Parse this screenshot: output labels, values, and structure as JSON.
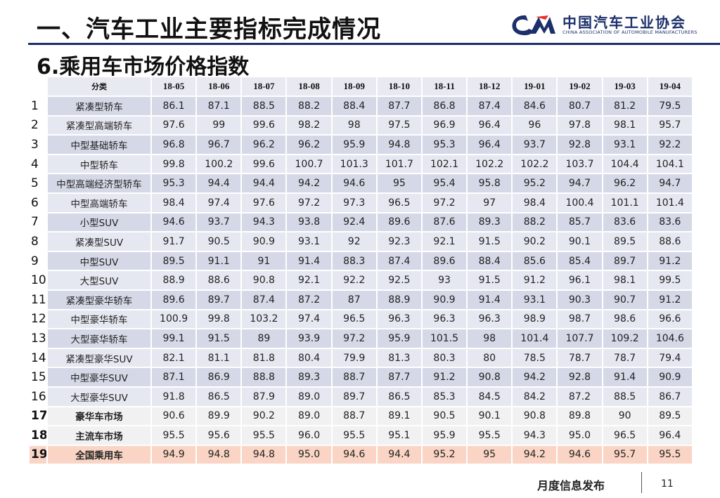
{
  "header": {
    "title": "一、汽车工业主要指标完成情况",
    "subtitle": "6.乘用车市场价格指数",
    "logo_cn": "中国汽车工业协会",
    "logo_en": "CHINA ASSOCIATION OF AUTOMOBILE MANUFACTURERS"
  },
  "table": {
    "category_header": "分类",
    "months": [
      "18-05",
      "18-06",
      "18-07",
      "18-08",
      "18-09",
      "18-10",
      "18-11",
      "18-12",
      "19-01",
      "19-02",
      "19-03",
      "19-04"
    ],
    "rows": [
      {
        "idx": "1",
        "category": "紧凑型轿车",
        "values": [
          "86.1",
          "87.1",
          "88.5",
          "88.2",
          "88.4",
          "87.7",
          "86.8",
          "87.4",
          "84.6",
          "80.7",
          "81.2",
          "79.5"
        ]
      },
      {
        "idx": "2",
        "category": "紧凑型高端轿车",
        "values": [
          "97.6",
          "99",
          "99.6",
          "98.2",
          "98",
          "97.5",
          "96.9",
          "96.4",
          "96",
          "97.8",
          "98.1",
          "95.7"
        ]
      },
      {
        "idx": "3",
        "category": "中型基础轿车",
        "values": [
          "96.8",
          "96.7",
          "96.2",
          "96.2",
          "95.9",
          "94.8",
          "95.3",
          "96.4",
          "93.7",
          "92.8",
          "93.1",
          "92.2"
        ]
      },
      {
        "idx": "4",
        "category": "中型轿车",
        "values": [
          "99.8",
          "100.2",
          "99.6",
          "100.7",
          "101.3",
          "101.7",
          "102.1",
          "102.2",
          "102.2",
          "103.7",
          "104.4",
          "104.1"
        ]
      },
      {
        "idx": "5",
        "category": "中型高端经济型轿车",
        "values": [
          "95.3",
          "94.4",
          "94.4",
          "94.2",
          "94.6",
          "95",
          "95.4",
          "95.8",
          "95.2",
          "94.7",
          "96.2",
          "94.7"
        ]
      },
      {
        "idx": "6",
        "category": "中型高端轿车",
        "values": [
          "98.4",
          "97.4",
          "97.6",
          "97.2",
          "97.3",
          "96.5",
          "97.2",
          "97",
          "98.4",
          "100.4",
          "101.1",
          "101.4"
        ]
      },
      {
        "idx": "7",
        "category": "小型SUV",
        "values": [
          "94.6",
          "93.7",
          "94.3",
          "93.8",
          "92.4",
          "89.6",
          "87.6",
          "89.3",
          "88.2",
          "85.7",
          "83.6",
          "83.6"
        ]
      },
      {
        "idx": "8",
        "category": "紧凑型SUV",
        "values": [
          "91.7",
          "90.5",
          "90.9",
          "93.1",
          "92",
          "92.3",
          "92.1",
          "91.5",
          "90.2",
          "90.1",
          "89.5",
          "88.6"
        ]
      },
      {
        "idx": "9",
        "category": "中型SUV",
        "values": [
          "89.5",
          "91.1",
          "91",
          "91.4",
          "88.3",
          "87.4",
          "89.6",
          "88.4",
          "85.6",
          "85.4",
          "89.7",
          "91.2"
        ]
      },
      {
        "idx": "10",
        "category": "大型SUV",
        "values": [
          "88.9",
          "88.6",
          "90.8",
          "92.1",
          "92.2",
          "92.5",
          "93",
          "91.5",
          "91.2",
          "96.1",
          "98.1",
          "99.5"
        ]
      },
      {
        "idx": "11",
        "category": "紧凑型豪华轿车",
        "values": [
          "89.6",
          "89.7",
          "87.4",
          "87.2",
          "87",
          "88.9",
          "90.9",
          "91.4",
          "93.1",
          "90.3",
          "90.7",
          "91.2"
        ]
      },
      {
        "idx": "12",
        "category": "中型豪华轿车",
        "values": [
          "100.9",
          "99.8",
          "103.2",
          "97.4",
          "96.5",
          "96.3",
          "96.3",
          "96.3",
          "98.9",
          "98.7",
          "98.6",
          "96.6"
        ]
      },
      {
        "idx": "13",
        "category": "大型豪华轿车",
        "values": [
          "99.1",
          "91.5",
          "89",
          "93.9",
          "97.2",
          "95.9",
          "101.5",
          "98",
          "101.4",
          "107.7",
          "109.2",
          "104.6"
        ]
      },
      {
        "idx": "14",
        "category": "紧凑型豪华SUV",
        "values": [
          "82.1",
          "81.1",
          "81.8",
          "80.4",
          "79.9",
          "81.3",
          "80.3",
          "80",
          "78.5",
          "78.7",
          "78.7",
          "79.4"
        ]
      },
      {
        "idx": "15",
        "category": "中型豪华SUV",
        "values": [
          "87.1",
          "86.9",
          "88.8",
          "89.3",
          "88.7",
          "87.7",
          "91.2",
          "90.8",
          "94.2",
          "92.8",
          "91.4",
          "90.9"
        ]
      },
      {
        "idx": "16",
        "category": "大型豪华SUV",
        "values": [
          "91.8",
          "86.5",
          "87.9",
          "89.0",
          "89.7",
          "86.5",
          "85.3",
          "84.5",
          "84.2",
          "87.2",
          "88.5",
          "86.7"
        ]
      },
      {
        "idx": "17",
        "category": "豪华车市场",
        "values": [
          "90.6",
          "89.9",
          "90.2",
          "89.0",
          "88.7",
          "89.1",
          "90.5",
          "90.1",
          "90.8",
          "89.8",
          "90",
          "89.5"
        ]
      },
      {
        "idx": "18",
        "category": "主流车市场",
        "values": [
          "95.5",
          "95.6",
          "95.5",
          "96.0",
          "95.5",
          "95.1",
          "95.9",
          "95.5",
          "94.3",
          "95.0",
          "96.5",
          "96.4"
        ]
      },
      {
        "idx": "19",
        "category": "全国乘用车",
        "values": [
          "94.9",
          "94.8",
          "94.8",
          "95.0",
          "94.6",
          "94.4",
          "95.2",
          "95",
          "94.2",
          "94.6",
          "95.7",
          "95.5"
        ]
      }
    ]
  },
  "footer": {
    "text": "月度信息发布",
    "page_number": "11"
  }
}
